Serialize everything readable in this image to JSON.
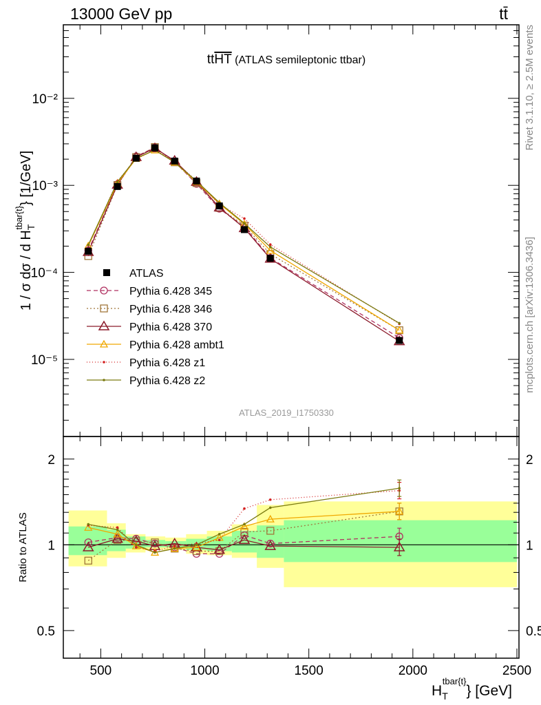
{
  "header": {
    "left": "13000 GeV pp",
    "right": "tt̄"
  },
  "side": {
    "rivet": "Rivet 3.1.10, ≥ 2.5M events",
    "mcplots": "mcplots.cern.ch [arXiv:1306.3436]"
  },
  "chart_data": {
    "type": "line",
    "title_main": "tt",
    "title_over": "HT",
    "title_rest": " (ATLAS semileptonic ttbar)",
    "watermark": "ATLAS_2019_I1750330",
    "ylabel_pre": "1 / σ dσ / d H",
    "ylabel_sub": "T",
    "ylabel_sup": "tbar{t}",
    "ylabel_post": "} [1/GeV]",
    "ratio_ylabel": "Ratio to ATLAS",
    "xlabel_pre": "H",
    "xlabel_sub": "T",
    "xlabel_sup": "tbar{t}",
    "xlabel_post": "} [GeV]",
    "x_range": [
      320,
      2510
    ],
    "y_range_log": [
      1.3e-06,
      0.07
    ],
    "ratio_range": [
      0.4,
      2.4
    ],
    "x_ticks": [
      "500",
      "1000",
      "1500",
      "2000",
      "2500"
    ],
    "y_ticks": [
      "10⁻⁵",
      "10⁻⁴",
      "10⁻³",
      "10⁻²"
    ],
    "ratio_ticks": [
      "0.5",
      "1",
      "2"
    ],
    "x": [
      440,
      580,
      670,
      760,
      855,
      960,
      1070,
      1190,
      1315,
      1935
    ],
    "bin_edges": [
      345,
      530,
      620,
      715,
      810,
      910,
      1010,
      1130,
      1250,
      1380,
      2500
    ],
    "band_inner": [
      [
        0.92,
        1.16
      ],
      [
        0.95,
        1.13
      ],
      [
        0.97,
        1.07
      ],
      [
        0.98,
        1.04
      ],
      [
        0.98,
        1.03
      ],
      [
        0.96,
        1.05
      ],
      [
        0.95,
        1.07
      ],
      [
        0.94,
        1.12
      ],
      [
        0.9,
        1.17
      ],
      [
        0.87,
        1.22
      ]
    ],
    "band_outer": [
      [
        0.84,
        1.32
      ],
      [
        0.9,
        1.19
      ],
      [
        0.94,
        1.09
      ],
      [
        0.96,
        1.07
      ],
      [
        0.96,
        1.06
      ],
      [
        0.93,
        1.09
      ],
      [
        0.92,
        1.12
      ],
      [
        0.9,
        1.18
      ],
      [
        0.83,
        1.38
      ],
      [
        0.71,
        1.42
      ]
    ],
    "legend_position": "middle-left",
    "data": {
      "name": "ATLAS",
      "values": [
        0.000175,
        0.00097,
        0.00205,
        0.0027,
        0.0019,
        0.00112,
        0.00058,
        0.00031,
        0.000145,
        1.65e-05
      ]
    },
    "series": [
      {
        "name": "Pythia 6.428 345",
        "color": "#b03060",
        "dash": "6,4",
        "marker": "circle",
        "ratio": [
          1.02,
          1.06,
          1.05,
          1.01,
          0.98,
          0.93,
          0.93,
          1.08,
          1.01,
          1.07
        ]
      },
      {
        "name": "Pythia 6.428 346",
        "color": "#a0763a",
        "dash": "2,3",
        "marker": "square",
        "ratio": [
          0.88,
          1.04,
          1.03,
          1.02,
          0.97,
          0.95,
          0.95,
          1.11,
          1.12,
          1.31
        ]
      },
      {
        "name": "Pythia 6.428 370",
        "color": "#8b1a2a",
        "dash": "",
        "marker": "triangle",
        "ratio": [
          0.98,
          1.05,
          1.03,
          0.99,
          1.01,
          0.98,
          0.96,
          1.04,
          0.99,
          0.98
        ]
      },
      {
        "name": "Pythia 6.428 ambt1",
        "color": "#f0a800",
        "dash": "",
        "marker": "triangle-filled-light",
        "ratio": [
          1.15,
          1.09,
          0.99,
          0.94,
          0.97,
          0.98,
          1.06,
          1.16,
          1.23,
          1.31
        ]
      },
      {
        "name": "Pythia 6.428 z1",
        "color": "#d42020",
        "dash": "1,3",
        "marker": "dot",
        "ratio": [
          1.17,
          1.15,
          0.98,
          0.95,
          0.99,
          1.01,
          1.04,
          1.34,
          1.44,
          1.55
        ]
      },
      {
        "name": "Pythia 6.428 z2",
        "color": "#7a7a10",
        "dash": "",
        "marker": "dot",
        "ratio": [
          1.18,
          1.13,
          1.0,
          0.94,
          0.97,
          1.0,
          1.09,
          1.18,
          1.35,
          1.58
        ]
      }
    ]
  }
}
